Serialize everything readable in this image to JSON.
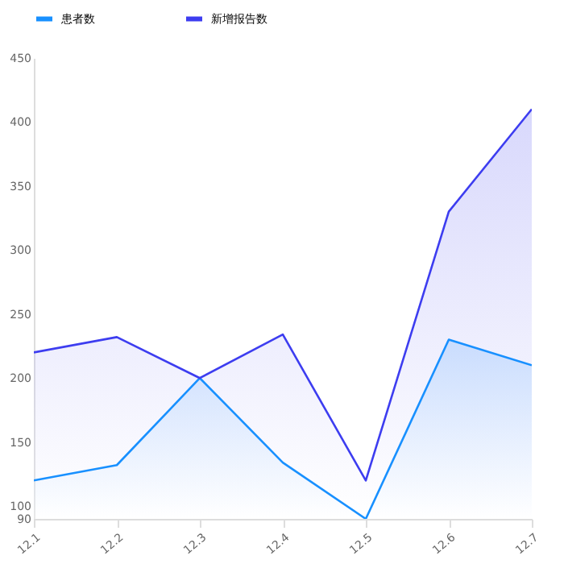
{
  "chart_data": {
    "type": "area",
    "categories": [
      "12.1",
      "12.2",
      "12.3",
      "12.4",
      "12.5",
      "12.6",
      "12.7"
    ],
    "series": [
      {
        "name": "患者数",
        "color": "#1890ff",
        "values": [
          120,
          132,
          200,
          134,
          90,
          230,
          210
        ]
      },
      {
        "name": "新增报告数",
        "color": "#3d3df0",
        "values": [
          220,
          232,
          200,
          234,
          120,
          330,
          410
        ]
      }
    ],
    "ylim": [
      90,
      450
    ],
    "yticks": [
      90,
      100,
      150,
      200,
      250,
      300,
      350,
      400,
      450
    ],
    "grid": false,
    "legend": "top"
  }
}
